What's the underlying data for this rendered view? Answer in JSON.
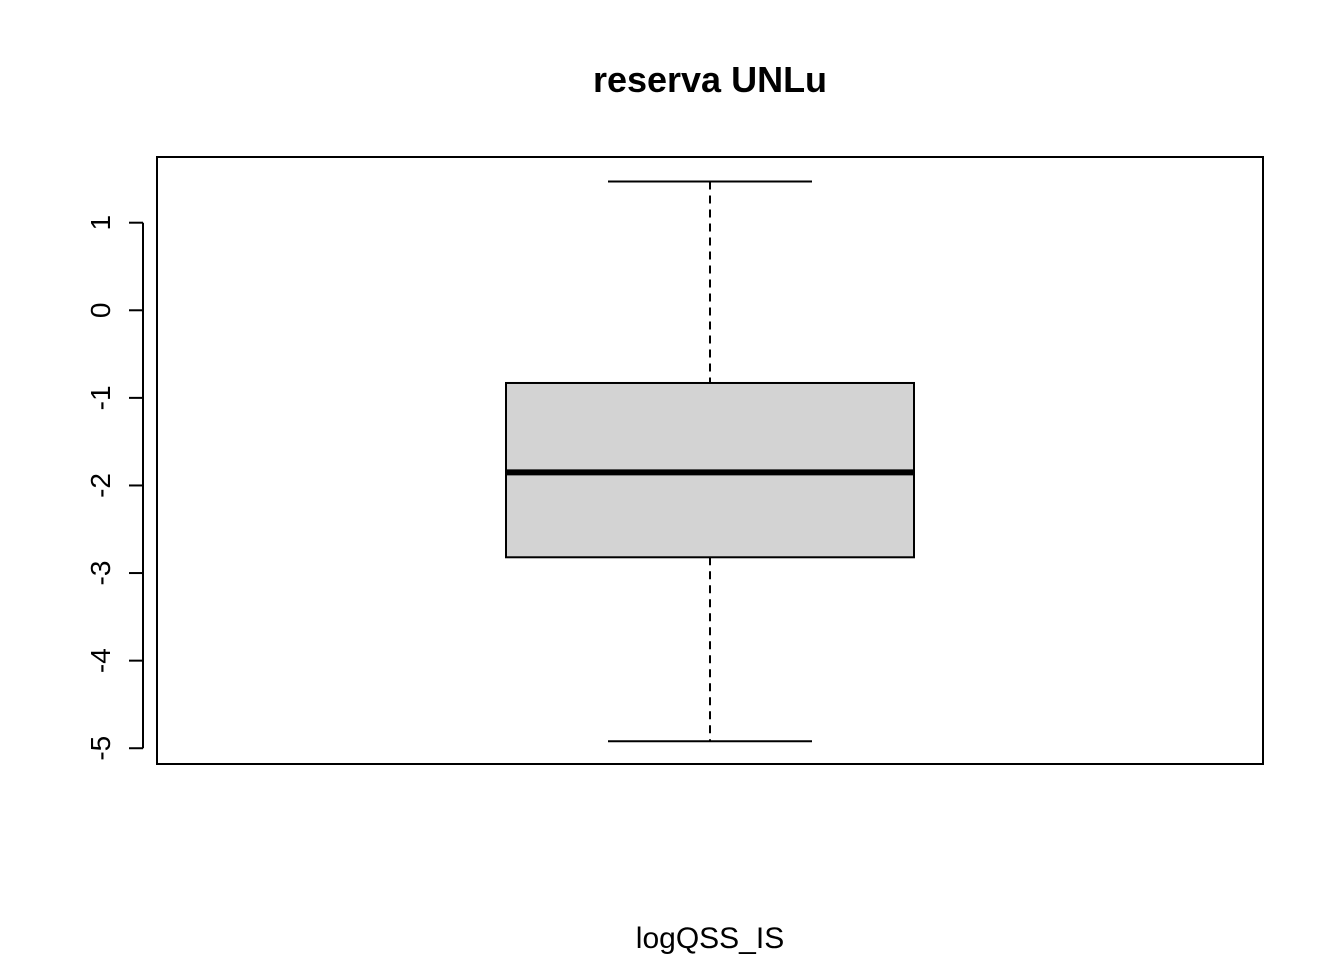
{
  "chart_data": {
    "type": "box",
    "title": "reserva UNLu",
    "xlabel": "logQSS_IS",
    "ylabel": "",
    "ylim": [
      -5.18,
      1.75
    ],
    "yticks": [
      -5,
      -4,
      -3,
      -2,
      -1,
      0,
      1
    ],
    "ytick_labels": [
      "-5",
      "-4",
      "-3",
      "-2",
      "-1",
      "0",
      "1"
    ],
    "grid": false,
    "box": {
      "whisker_low": -4.92,
      "q1": -2.82,
      "median": -1.85,
      "q3": -0.83,
      "whisker_high": 1.47
    },
    "colors": {
      "box_fill": "#d3d3d3",
      "stroke": "#000000",
      "background": "#ffffff"
    }
  }
}
